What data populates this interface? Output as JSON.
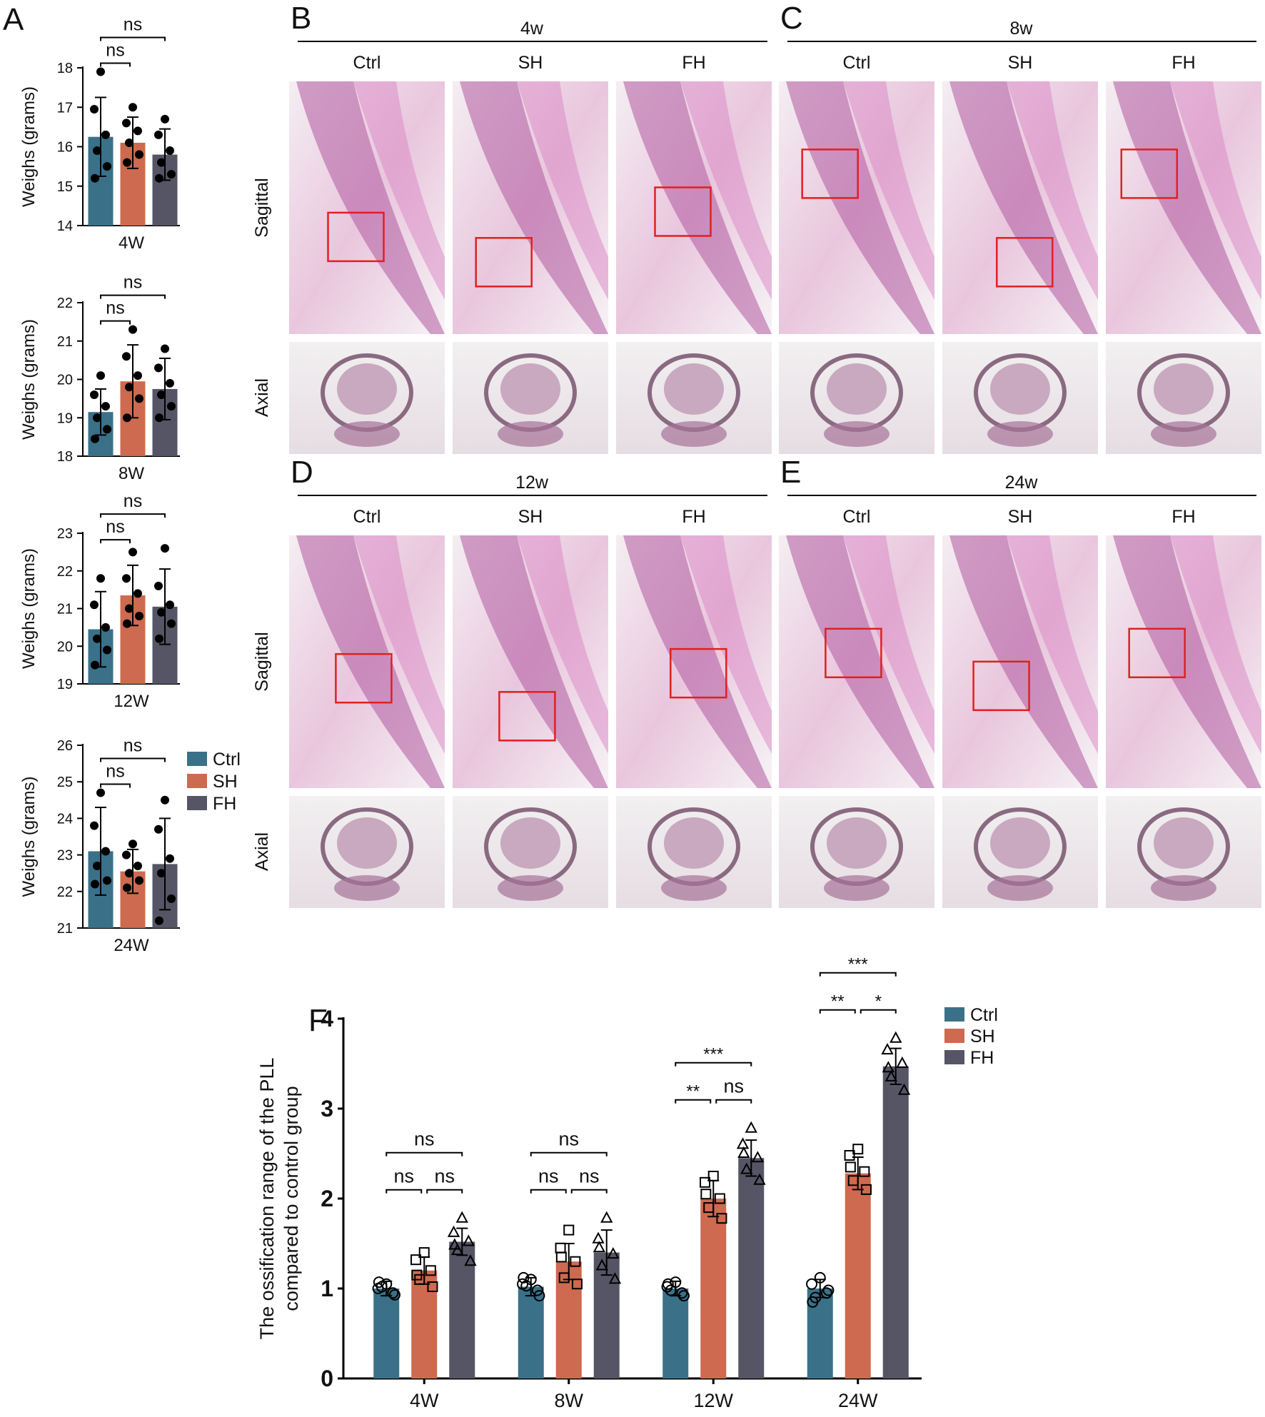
{
  "chart_data": [
    {
      "panel": "A",
      "type": "bar",
      "y_label": "Weighs (grams)",
      "categories": [
        "4W"
      ],
      "ylim": [
        14,
        18
      ],
      "yticks": [
        14,
        15,
        16,
        17,
        18
      ],
      "series": [
        {
          "color": "#3a7189",
          "values": [
            16.25
          ],
          "errors": [
            1.0
          ],
          "points": [
            [
              17.9,
              16.95,
              16.3,
              15.9,
              15.5,
              15.2
            ]
          ]
        },
        {
          "color": "#cd6a4f",
          "values": [
            16.1
          ],
          "errors": [
            0.65
          ],
          "points": [
            [
              17.0,
              16.6,
              16.4,
              16.1,
              15.8,
              15.6
            ]
          ]
        },
        {
          "color": "#555565",
          "values": [
            15.8
          ],
          "errors": [
            0.65
          ],
          "points": [
            [
              16.7,
              16.3,
              15.9,
              15.6,
              15.3,
              15.2
            ]
          ]
        }
      ],
      "comparisons": [
        {
          "category": 0,
          "groups": [
            0,
            1
          ],
          "label": "ns"
        },
        {
          "category": 0,
          "groups": [
            0,
            2
          ],
          "label": "ns"
        }
      ]
    },
    {
      "type": "bar",
      "y_label": "Weighs (grams)",
      "categories": [
        "8W"
      ],
      "ylim": [
        18,
        22
      ],
      "yticks": [
        18,
        19,
        20,
        21,
        22
      ],
      "series": [
        {
          "color": "#3a7189",
          "values": [
            19.15
          ],
          "errors": [
            0.6
          ],
          "points": [
            [
              20.1,
              19.6,
              19.3,
              19.0,
              18.7,
              18.45
            ]
          ]
        },
        {
          "color": "#cd6a4f",
          "values": [
            19.95
          ],
          "errors": [
            0.95
          ],
          "points": [
            [
              21.3,
              20.6,
              20.1,
              19.8,
              19.5,
              19.0
            ]
          ]
        },
        {
          "color": "#555565",
          "values": [
            19.75
          ],
          "errors": [
            0.8
          ],
          "points": [
            [
              20.8,
              20.3,
              19.9,
              19.6,
              19.3,
              19.0
            ]
          ]
        }
      ],
      "comparisons": [
        {
          "category": 0,
          "groups": [
            0,
            1
          ],
          "label": "ns"
        },
        {
          "category": 0,
          "groups": [
            0,
            2
          ],
          "label": "ns"
        }
      ]
    },
    {
      "type": "bar",
      "y_label": "Weighs (grams)",
      "categories": [
        "12W"
      ],
      "ylim": [
        19,
        23
      ],
      "yticks": [
        19,
        20,
        21,
        22,
        23
      ],
      "series": [
        {
          "color": "#3a7189",
          "values": [
            20.45
          ],
          "errors": [
            1.0
          ],
          "points": [
            [
              21.8,
              21.1,
              20.5,
              20.2,
              19.9,
              19.5
            ]
          ]
        },
        {
          "color": "#cd6a4f",
          "values": [
            21.35
          ],
          "errors": [
            0.8
          ],
          "points": [
            [
              22.5,
              21.8,
              21.4,
              21.0,
              20.8,
              20.6
            ]
          ]
        },
        {
          "color": "#555565",
          "values": [
            21.05
          ],
          "errors": [
            1.0
          ],
          "points": [
            [
              22.6,
              21.6,
              21.1,
              20.9,
              20.6,
              20.2
            ]
          ]
        }
      ],
      "comparisons": [
        {
          "category": 0,
          "groups": [
            0,
            1
          ],
          "label": "ns"
        },
        {
          "category": 0,
          "groups": [
            0,
            2
          ],
          "label": "ns"
        }
      ]
    },
    {
      "type": "bar",
      "y_label": "Weighs (grams)",
      "categories": [
        "24W"
      ],
      "category_color": "#777777",
      "ylim": [
        21,
        26
      ],
      "yticks": [
        21,
        22,
        23,
        24,
        25,
        26
      ],
      "series": [
        {
          "name": "Ctrl",
          "color": "#3a7189",
          "values": [
            23.1
          ],
          "errors": [
            1.2
          ],
          "points": [
            [
              24.7,
              23.8,
              23.1,
              22.7,
              22.3,
              22.2
            ]
          ]
        },
        {
          "name": "SH",
          "color": "#cd6a4f",
          "values": [
            22.55
          ],
          "errors": [
            0.6
          ],
          "points": [
            [
              23.3,
              23.0,
              22.7,
              22.5,
              22.3,
              22.1
            ]
          ]
        },
        {
          "name": "FH",
          "color": "#555565",
          "values": [
            22.75
          ],
          "errors": [
            1.25
          ],
          "points": [
            [
              24.5,
              23.7,
              22.9,
              22.5,
              21.8,
              21.2
            ]
          ]
        }
      ],
      "comparisons": [
        {
          "category": 0,
          "groups": [
            0,
            1
          ],
          "label": "ns"
        },
        {
          "category": 0,
          "groups": [
            0,
            2
          ],
          "label": "ns"
        }
      ]
    },
    {
      "panel": "F",
      "type": "bar",
      "y_label": [
        "The ossification range of the PLL",
        "compared to control group"
      ],
      "categories": [
        "4W",
        "8W",
        "12W",
        "24W"
      ],
      "ylim": [
        0,
        4
      ],
      "yticks": [
        0,
        1,
        2,
        3,
        4
      ],
      "series": [
        {
          "name": "Ctrl",
          "color": "#3a7189",
          "marker": "circle",
          "values": [
            1.0,
            1.02,
            1.0,
            1.0
          ],
          "errors": [
            0.08,
            0.1,
            0.08,
            0.1
          ],
          "points": [
            [
              1.05,
              1.0,
              0.95,
              1.02,
              0.93,
              1.07
            ],
            [
              1.1,
              1.05,
              0.98,
              1.03,
              0.92,
              1.12
            ],
            [
              1.07,
              1.02,
              0.95,
              0.98,
              0.92,
              1.05
            ],
            [
              1.12,
              1.05,
              0.95,
              0.9,
              0.98,
              0.85
            ]
          ]
        },
        {
          "name": "SH",
          "color": "#cd6a4f",
          "marker": "square",
          "values": [
            1.2,
            1.3,
            2.0,
            2.28
          ],
          "errors": [
            0.15,
            0.2,
            0.2,
            0.18
          ],
          "points": [
            [
              1.4,
              1.32,
              1.2,
              1.1,
              1.02,
              1.15
            ],
            [
              1.65,
              1.45,
              1.3,
              1.12,
              1.05,
              1.35
            ],
            [
              2.25,
              2.18,
              2.0,
              1.9,
              1.78,
              2.05
            ],
            [
              2.55,
              2.48,
              2.3,
              2.2,
              2.1,
              2.35
            ]
          ]
        },
        {
          "name": "FH",
          "color": "#555565",
          "marker": "triangle",
          "values": [
            1.52,
            1.4,
            2.45,
            3.47
          ],
          "errors": [
            0.15,
            0.25,
            0.2,
            0.2
          ],
          "points": [
            [
              1.78,
              1.62,
              1.52,
              1.42,
              1.3,
              1.48
            ],
            [
              1.78,
              1.55,
              1.38,
              1.25,
              1.1,
              1.45
            ],
            [
              2.78,
              2.6,
              2.45,
              2.32,
              2.2,
              2.5
            ],
            [
              3.78,
              3.65,
              3.5,
              3.35,
              3.2,
              3.45
            ]
          ]
        }
      ],
      "comparisons": [
        {
          "category": 0,
          "groups": [
            0,
            1
          ],
          "label": "ns"
        },
        {
          "category": 0,
          "groups": [
            1,
            2
          ],
          "label": "ns"
        },
        {
          "category": 0,
          "groups": [
            0,
            2
          ],
          "label": "ns"
        },
        {
          "category": 1,
          "groups": [
            0,
            1
          ],
          "label": "ns"
        },
        {
          "category": 1,
          "groups": [
            1,
            2
          ],
          "label": "ns"
        },
        {
          "category": 1,
          "groups": [
            0,
            2
          ],
          "label": "ns"
        },
        {
          "category": 2,
          "groups": [
            0,
            1
          ],
          "label": "**"
        },
        {
          "category": 2,
          "groups": [
            1,
            2
          ],
          "label": "ns"
        },
        {
          "category": 2,
          "groups": [
            0,
            2
          ],
          "label": "***"
        },
        {
          "category": 3,
          "groups": [
            0,
            1
          ],
          "label": "**"
        },
        {
          "category": 3,
          "groups": [
            1,
            2
          ],
          "label": "*"
        },
        {
          "category": 3,
          "groups": [
            0,
            2
          ],
          "label": "***"
        }
      ]
    }
  ],
  "histology": [
    {
      "panel": "B",
      "time": "4w",
      "columns": [
        "Ctrl",
        "SH",
        "FH"
      ],
      "rows": [
        "Sagittal",
        "Axial"
      ]
    },
    {
      "panel": "C",
      "time": "8w",
      "columns": [
        "Ctrl",
        "SH",
        "FH"
      ]
    },
    {
      "panel": "D",
      "time": "12w",
      "columns": [
        "Ctrl",
        "SH",
        "FH"
      ],
      "rows": [
        "Sagittal",
        "Axial"
      ]
    },
    {
      "panel": "E",
      "time": "24w",
      "columns": [
        "Ctrl",
        "SH",
        "FH"
      ]
    }
  ]
}
